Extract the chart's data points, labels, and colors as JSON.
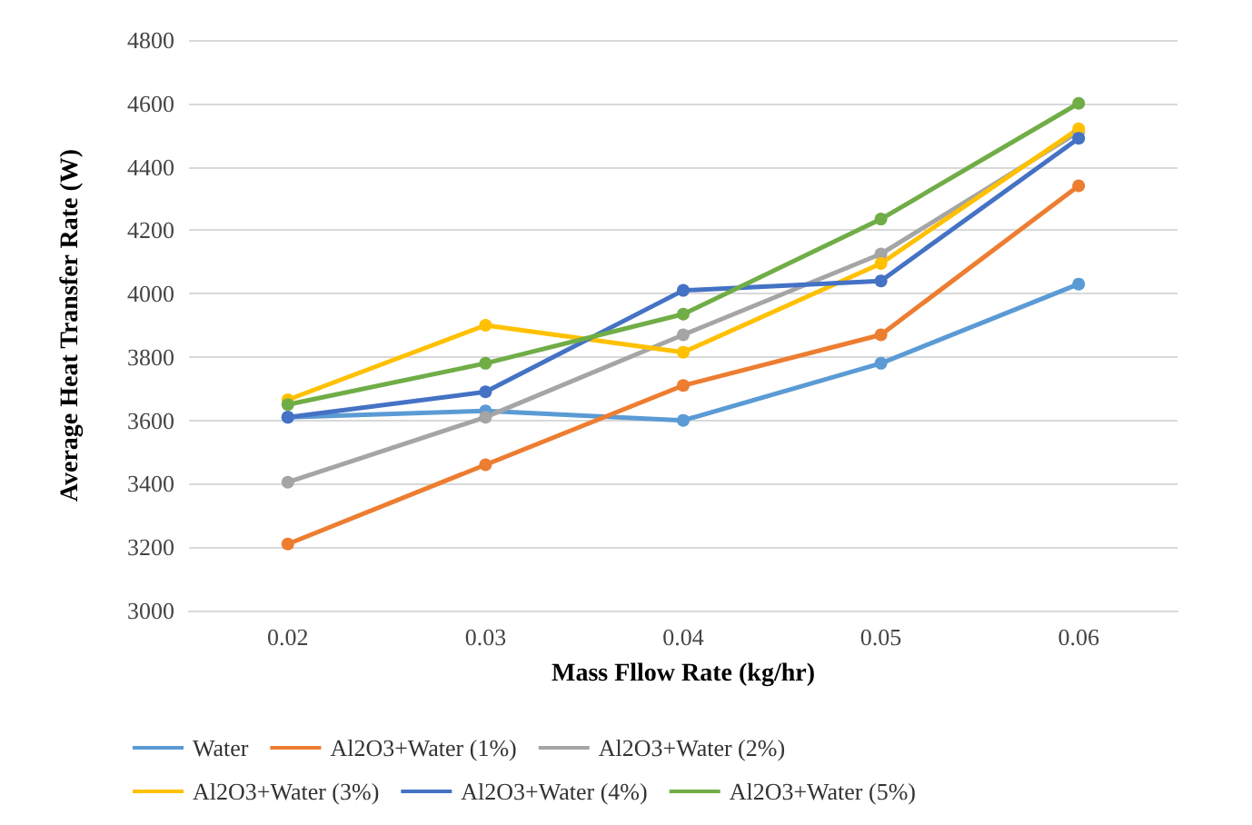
{
  "chart_data": {
    "type": "line",
    "xlabel": "Mass Fllow Rate (kg/hr)",
    "ylabel": "Average Heat Transfer Rate (W)",
    "categories": [
      "0.02",
      "0.03",
      "0.04",
      "0.05",
      "0.06"
    ],
    "ylim": [
      3000,
      4800
    ],
    "yticks": [
      3000,
      3200,
      3400,
      3600,
      3800,
      4000,
      4200,
      4400,
      4600,
      4800
    ],
    "grid": "y",
    "legend": "bottom",
    "marker": "circle",
    "line_style": "solid",
    "series": [
      {
        "name": "Water",
        "color": "#5b9bd5",
        "values": [
          3610,
          3630,
          3600,
          3780,
          4030
        ]
      },
      {
        "name": "Al2O3+Water (1%)",
        "color": "#ed7d31",
        "values": [
          3210,
          3460,
          3710,
          3870,
          4340
        ]
      },
      {
        "name": "Al2O3+Water (2%)",
        "color": "#a5a5a5",
        "values": [
          3405,
          3610,
          3870,
          4125,
          4510
        ]
      },
      {
        "name": "Al2O3+Water (3%)",
        "color": "#ffc000",
        "values": [
          3665,
          3900,
          3815,
          4095,
          4520
        ]
      },
      {
        "name": "Al2O3+Water (4%)",
        "color": "#4472c4",
        "values": [
          3610,
          3690,
          4010,
          4040,
          4490
        ]
      },
      {
        "name": "Al2O3+Water (5%)",
        "color": "#70ad47",
        "values": [
          3650,
          3780,
          3935,
          4235,
          4600
        ]
      }
    ]
  }
}
